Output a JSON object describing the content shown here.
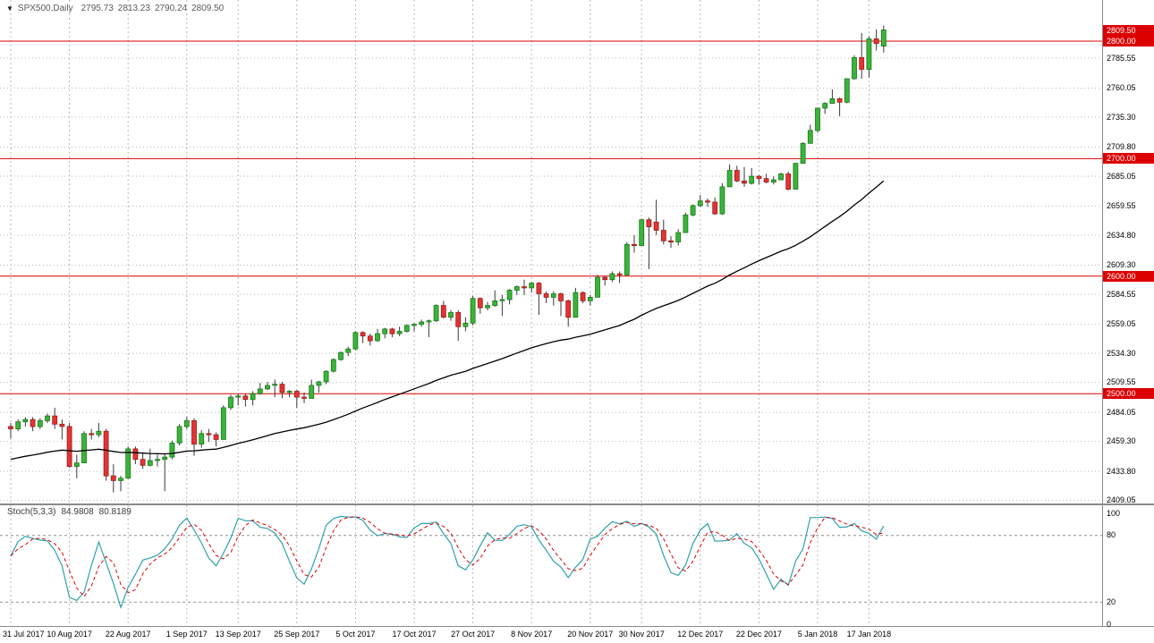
{
  "header": {
    "symbol_period": "SPX500,Daily",
    "open": "2795.73",
    "high": "2813.23",
    "low": "2790.24",
    "close": "2809.50"
  },
  "indicator": {
    "label": "Stoch(5,3,3)",
    "k_value": "84.9808",
    "d_value": "80.8189"
  },
  "colors": {
    "up": "#3cb33c",
    "up_border": "#157a15",
    "down": "#e23434",
    "down_border": "#9e1a1a",
    "wick": "#3a3a3a",
    "level_line": "#dd0000",
    "tag_bg": "#dd0000",
    "tag_text": "#ffffff",
    "ma": "#000000",
    "stoch_k": "#2fa0ad",
    "stoch_d": "#dd0000",
    "grid": "#b8b8b8",
    "stoch_grid": "#909090",
    "separator": "#8a8a8a",
    "axis_text": "#000000"
  },
  "chart_data": {
    "type": "candlestick",
    "symbol": "SPX500",
    "timeframe": "Daily",
    "title": "SPX500 Daily with 2500/2600/2700/2800 levels, moving average and Stochastic(5,3,3)",
    "y_range": {
      "top": 2835,
      "bottom": 2406.5
    },
    "price_ticks": [
      2785.55,
      2760.05,
      2735.3,
      2709.8,
      2685.05,
      2659.55,
      2634.8,
      2609.3,
      2584.55,
      2559.05,
      2534.3,
      2509.55,
      2484.05,
      2459.3,
      2433.8,
      2409.05
    ],
    "tagged_levels": [
      2800.0,
      2700.0,
      2600.0,
      2500.0
    ],
    "current_price": 2809.5,
    "last_ohlc": {
      "open": 2795.73,
      "high": 2813.23,
      "low": 2790.24,
      "close": 2809.5
    },
    "x_labels": [
      {
        "i": 0,
        "t": "31 Jul 2017"
      },
      {
        "i": 8,
        "t": "10 Aug 2017"
      },
      {
        "i": 16,
        "t": "22 Aug 2017"
      },
      {
        "i": 24,
        "t": "1 Sep 2017"
      },
      {
        "i": 31,
        "t": "13 Sep 2017"
      },
      {
        "i": 39,
        "t": "25 Sep 2017"
      },
      {
        "i": 47,
        "t": "5 Oct 2017"
      },
      {
        "i": 55,
        "t": "17 Oct 2017"
      },
      {
        "i": 63,
        "t": "27 Oct 2017"
      },
      {
        "i": 71,
        "t": "8 Nov 2017"
      },
      {
        "i": 79,
        "t": "20 Nov 2017"
      },
      {
        "i": 86,
        "t": "30 Nov 2017"
      },
      {
        "i": 94,
        "t": "12 Dec 2017"
      },
      {
        "i": 102,
        "t": "22 Dec 2017"
      },
      {
        "i": 110,
        "t": "5 Jan 2018"
      },
      {
        "i": 117,
        "t": "17 Jan 2018"
      }
    ],
    "ma": {
      "seed": 2443,
      "alpha": 0.04
    },
    "stochastic": {
      "label": "Stoch(5,3,3)",
      "params": [
        5,
        3,
        3
      ],
      "k_last": 84.9808,
      "d_last": 80.8189,
      "levels": [
        100,
        80,
        20,
        0
      ]
    },
    "candles": [
      [
        2472,
        2475,
        2462,
        2470
      ],
      [
        2470,
        2478,
        2468,
        2476
      ],
      [
        2476,
        2480,
        2472,
        2478
      ],
      [
        2478,
        2480,
        2468,
        2472
      ],
      [
        2472,
        2479,
        2470,
        2477
      ],
      [
        2477,
        2483,
        2475,
        2481
      ],
      [
        2481,
        2488,
        2470,
        2474
      ],
      [
        2474,
        2478,
        2461,
        2472
      ],
      [
        2472,
        2475,
        2437,
        2438
      ],
      [
        2438,
        2448,
        2428,
        2441
      ],
      [
        2441,
        2468,
        2441,
        2466
      ],
      [
        2466,
        2470,
        2461,
        2465
      ],
      [
        2465,
        2475,
        2463,
        2468
      ],
      [
        2468,
        2470,
        2426,
        2430
      ],
      [
        2430,
        2440,
        2416,
        2426
      ],
      [
        2426,
        2430,
        2417,
        2428
      ],
      [
        2428,
        2455,
        2428,
        2453
      ],
      [
        2453,
        2455,
        2440,
        2444
      ],
      [
        2444,
        2450,
        2436,
        2439
      ],
      [
        2439,
        2453,
        2438,
        2443
      ],
      [
        2443,
        2448,
        2438,
        2444
      ],
      [
        2444,
        2449,
        2417,
        2446
      ],
      [
        2446,
        2460,
        2444,
        2458
      ],
      [
        2458,
        2474,
        2456,
        2472
      ],
      [
        2472,
        2480,
        2470,
        2477
      ],
      [
        2477,
        2479,
        2447,
        2457
      ],
      [
        2457,
        2469,
        2454,
        2466
      ],
      [
        2466,
        2470,
        2459,
        2465
      ],
      [
        2465,
        2467,
        2455,
        2461
      ],
      [
        2461,
        2490,
        2461,
        2488
      ],
      [
        2488,
        2499,
        2486,
        2497
      ],
      [
        2497,
        2500,
        2490,
        2498
      ],
      [
        2498,
        2500,
        2489,
        2495
      ],
      [
        2495,
        2502,
        2490,
        2500
      ],
      [
        2500,
        2509,
        2499,
        2504
      ],
      [
        2504,
        2510,
        2503,
        2507
      ],
      [
        2507,
        2512,
        2497,
        2508
      ],
      [
        2508,
        2510,
        2496,
        2501
      ],
      [
        2501,
        2503,
        2497,
        2502
      ],
      [
        2502,
        2503,
        2488,
        2497
      ],
      [
        2497,
        2501,
        2492,
        2496
      ],
      [
        2496,
        2512,
        2496,
        2507
      ],
      [
        2507,
        2511,
        2501,
        2510
      ],
      [
        2510,
        2520,
        2508,
        2519
      ],
      [
        2519,
        2530,
        2518,
        2529
      ],
      [
        2529,
        2536,
        2528,
        2535
      ],
      [
        2535,
        2540,
        2532,
        2538
      ],
      [
        2538,
        2553,
        2537,
        2552
      ],
      [
        2552,
        2553,
        2543,
        2549
      ],
      [
        2549,
        2551,
        2541,
        2545
      ],
      [
        2545,
        2555,
        2544,
        2551
      ],
      [
        2551,
        2556,
        2547,
        2555
      ],
      [
        2555,
        2556,
        2548,
        2551
      ],
      [
        2551,
        2557,
        2549,
        2553
      ],
      [
        2553,
        2559,
        2552,
        2558
      ],
      [
        2558,
        2560,
        2553,
        2559
      ],
      [
        2559,
        2563,
        2557,
        2561
      ],
      [
        2561,
        2563,
        2548,
        2562
      ],
      [
        2562,
        2576,
        2561,
        2575
      ],
      [
        2575,
        2579,
        2564,
        2565
      ],
      [
        2565,
        2571,
        2562,
        2569
      ],
      [
        2569,
        2571,
        2545,
        2557
      ],
      [
        2557,
        2565,
        2553,
        2560
      ],
      [
        2560,
        2583,
        2558,
        2581
      ],
      [
        2581,
        2582,
        2568,
        2573
      ],
      [
        2573,
        2578,
        2571,
        2575
      ],
      [
        2575,
        2588,
        2574,
        2579
      ],
      [
        2579,
        2584,
        2566,
        2580
      ],
      [
        2580,
        2589,
        2576,
        2588
      ],
      [
        2588,
        2592,
        2584,
        2591
      ],
      [
        2591,
        2597,
        2584,
        2590
      ],
      [
        2590,
        2595,
        2586,
        2594
      ],
      [
        2594,
        2595,
        2567,
        2585
      ],
      [
        2585,
        2587,
        2577,
        2582
      ],
      [
        2582,
        2587,
        2575,
        2585
      ],
      [
        2585,
        2586,
        2566,
        2579
      ],
      [
        2579,
        2580,
        2557,
        2565
      ],
      [
        2565,
        2590,
        2565,
        2586
      ],
      [
        2586,
        2587,
        2577,
        2579
      ],
      [
        2579,
        2584,
        2575,
        2582
      ],
      [
        2582,
        2601,
        2582,
        2599
      ],
      [
        2599,
        2600,
        2592,
        2597
      ],
      [
        2597,
        2604,
        2595,
        2602
      ],
      [
        2602,
        2604,
        2594,
        2601
      ],
      [
        2601,
        2629,
        2600,
        2627
      ],
      [
        2627,
        2635,
        2620,
        2626
      ],
      [
        2626,
        2649,
        2626,
        2648
      ],
      [
        2648,
        2650,
        2606,
        2642
      ],
      [
        2646,
        2665,
        2635,
        2639
      ],
      [
        2639,
        2648,
        2627,
        2630
      ],
      [
        2630,
        2634,
        2624,
        2629
      ],
      [
        2629,
        2640,
        2626,
        2637
      ],
      [
        2637,
        2654,
        2637,
        2652
      ],
      [
        2652,
        2661,
        2651,
        2660
      ],
      [
        2660,
        2669,
        2659,
        2664
      ],
      [
        2664,
        2666,
        2659,
        2663
      ],
      [
        2663,
        2667,
        2652,
        2653
      ],
      [
        2653,
        2679,
        2652,
        2676
      ],
      [
        2676,
        2695,
        2676,
        2690
      ],
      [
        2690,
        2694,
        2680,
        2681
      ],
      [
        2681,
        2693,
        2676,
        2679
      ],
      [
        2679,
        2692,
        2678,
        2685
      ],
      [
        2685,
        2686,
        2678,
        2683
      ],
      [
        2683,
        2687,
        2679,
        2680
      ],
      [
        2680,
        2685,
        2678,
        2682
      ],
      [
        2682,
        2688,
        2682,
        2687
      ],
      [
        2687,
        2689,
        2673,
        2674
      ],
      [
        2674,
        2696,
        2674,
        2696
      ],
      [
        2696,
        2714,
        2696,
        2713
      ],
      [
        2713,
        2729,
        2713,
        2724
      ],
      [
        2724,
        2743,
        2722,
        2743
      ],
      [
        2743,
        2748,
        2738,
        2747
      ],
      [
        2747,
        2759,
        2747,
        2751
      ],
      [
        2751,
        2752,
        2736,
        2748
      ],
      [
        2748,
        2768,
        2747,
        2768
      ],
      [
        2768,
        2788,
        2767,
        2786
      ],
      [
        2786,
        2807,
        2768,
        2776
      ],
      [
        2776,
        2804,
        2769,
        2802
      ],
      [
        2802,
        2810,
        2792,
        2798
      ],
      [
        2795.73,
        2813.23,
        2790.24,
        2809.5
      ]
    ]
  }
}
